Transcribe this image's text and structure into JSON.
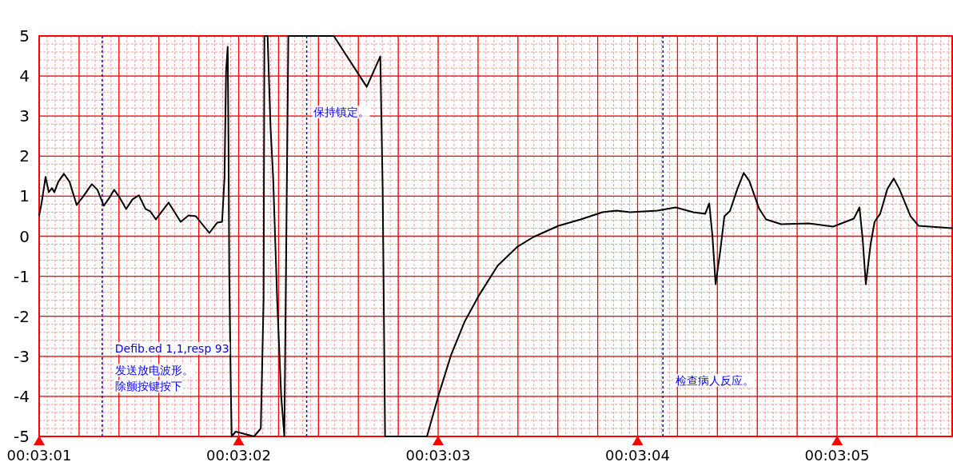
{
  "chart_data": {
    "type": "line",
    "x": [
      181,
      181.012,
      181.032,
      181.048,
      181.064,
      181.076,
      181.096,
      181.124,
      181.152,
      181.188,
      181.216,
      181.264,
      181.292,
      181.324,
      181.352,
      181.376,
      181.404,
      181.436,
      181.468,
      181.5,
      181.533,
      181.557,
      181.585,
      181.649,
      181.709,
      181.749,
      181.785,
      181.853,
      181.893,
      181.917,
      181.929,
      181.937,
      181.945,
      181.949,
      181.953,
      181.961,
      181.965,
      181.985,
      182.077,
      182.111,
      182.125,
      182.129,
      182.145,
      182.16,
      182.173,
      182.193,
      182.213,
      182.229,
      182.249,
      182.477,
      182.642,
      182.71,
      182.722,
      182.734,
      182.944,
      183.002,
      183.066,
      183.134,
      183.202,
      183.298,
      183.398,
      183.478,
      183.603,
      183.715,
      183.823,
      183.895,
      183.963,
      184.099,
      184.191,
      184.279,
      184.339,
      184.359,
      184.375,
      184.391,
      184.415,
      184.435,
      184.463,
      184.5,
      184.532,
      184.56,
      184.608,
      184.644,
      184.72,
      184.856,
      184.98,
      185.084,
      185.112,
      185.128,
      185.144,
      185.168,
      185.188,
      185.216,
      185.252,
      185.284,
      185.312,
      185.368,
      185.408,
      185.577
    ],
    "series": [
      {
        "color": "#000000",
        "values": [
          0.52,
          0.82,
          1.48,
          1.1,
          1.2,
          1.1,
          1.36,
          1.56,
          1.36,
          0.78,
          0.96,
          1.3,
          1.16,
          0.76,
          0.96,
          1.16,
          0.96,
          0.68,
          0.92,
          1.02,
          0.68,
          0.62,
          0.42,
          0.84,
          0.36,
          0.52,
          0.5,
          0.08,
          0.34,
          0.36,
          1.46,
          4.13,
          4.73,
          2.42,
          -0.96,
          -3.9,
          -5,
          -4.88,
          -5,
          -4.8,
          -1.58,
          5,
          5,
          2.7,
          1.46,
          -1.58,
          -3.97,
          -5,
          5,
          5,
          3.73,
          4.49,
          1.18,
          -5,
          -5,
          -3.97,
          -2.95,
          -2.12,
          -1.5,
          -0.74,
          -0.26,
          -0.02,
          0.26,
          0.42,
          0.6,
          0.64,
          0.6,
          0.64,
          0.72,
          0.6,
          0.56,
          0.82,
          0.01,
          -1.2,
          -0.34,
          0.5,
          0.63,
          1.18,
          1.58,
          1.38,
          0.7,
          0.42,
          0.3,
          0.32,
          0.24,
          0.44,
          0.72,
          -0.06,
          -1.2,
          -0.2,
          0.36,
          0.56,
          1.18,
          1.44,
          1.18,
          0.5,
          0.26,
          0.2
        ]
      }
    ],
    "xlim": [
      181,
      185.577
    ],
    "xticks": [
      {
        "value": 181,
        "label": "00:03:01"
      },
      {
        "value": 181.2,
        "label": null
      },
      {
        "value": 181.4,
        "label": null
      },
      {
        "value": 181.6,
        "label": null
      },
      {
        "value": 181.8,
        "label": null
      },
      {
        "value": 182,
        "label": "00:03:02"
      },
      {
        "value": 182.2,
        "label": null
      },
      {
        "value": 182.4,
        "label": null
      },
      {
        "value": 182.6,
        "label": null
      },
      {
        "value": 182.8,
        "label": null
      },
      {
        "value": 183,
        "label": "00:03:03"
      },
      {
        "value": 183.2,
        "label": null
      },
      {
        "value": 183.4,
        "label": null
      },
      {
        "value": 183.6,
        "label": null
      },
      {
        "value": 183.8,
        "label": null
      },
      {
        "value": 184,
        "label": "00:03:04"
      },
      {
        "value": 184.2,
        "label": null
      },
      {
        "value": 184.4,
        "label": null
      },
      {
        "value": 184.6,
        "label": null
      },
      {
        "value": 184.8,
        "label": null
      },
      {
        "value": 185,
        "label": "00:03:05"
      },
      {
        "value": 185.2,
        "label": null
      },
      {
        "value": 185.4,
        "label": null
      }
    ],
    "ylim": [
      -5,
      5
    ],
    "yticks": [
      -5,
      -4,
      -3,
      -2,
      -1,
      0,
      1,
      2,
      3,
      4,
      5
    ],
    "grid": true,
    "line_style": "solid",
    "annotations": [
      {
        "text": "发送放电波形。",
        "x": 181.316,
        "y": -3.35
      },
      {
        "text": "除颤按键按下",
        "x": 181.316,
        "y": -3.75
      }
    ],
    "ref_lines": [
      {
        "axis": "x",
        "value": 181.316,
        "label": "Defib.ed 1,1,resp 93",
        "color": "#0000ff",
        "line_style": "dotted"
      },
      {
        "axis": "x",
        "value": 182.341,
        "label": "保持镇定。",
        "color": "#0000ff",
        "line_style": "dotted"
      },
      {
        "axis": "x",
        "value": 184.127,
        "label": "检查病人反应。",
        "color": "#0000ff",
        "line_style": "dotted"
      }
    ]
  }
}
